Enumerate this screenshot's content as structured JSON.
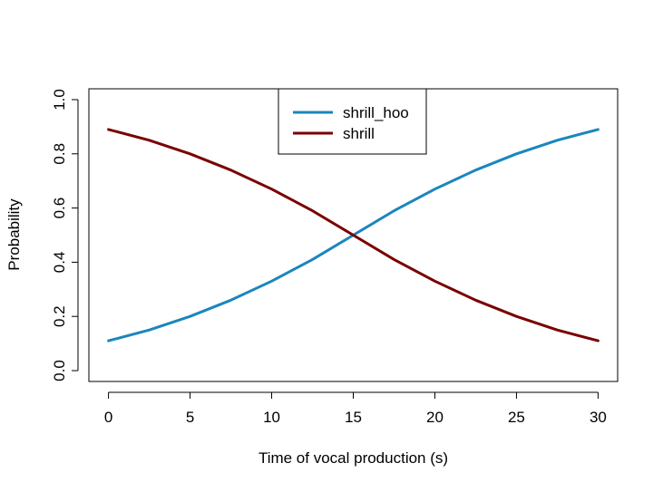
{
  "chart_data": {
    "type": "line",
    "title": "",
    "xlabel": "Time of vocal production (s)",
    "ylabel": "Probability",
    "xlim": [
      -1.2,
      31.2
    ],
    "ylim": [
      -0.04,
      1.04
    ],
    "x_ticks": [
      "0",
      "5",
      "10",
      "15",
      "20",
      "25",
      "30"
    ],
    "y_ticks": [
      "0.0",
      "0.2",
      "0.4",
      "0.6",
      "0.8",
      "1.0"
    ],
    "grid": false,
    "legend_position": "top-center",
    "series": [
      {
        "name": "shrill_hoo",
        "color": "#1a86bd",
        "x": [
          0,
          2.5,
          5,
          7.5,
          10,
          12.5,
          15,
          17.5,
          20,
          22.5,
          25,
          27.5,
          30
        ],
        "y": [
          0.11,
          0.15,
          0.2,
          0.26,
          0.33,
          0.41,
          0.5,
          0.59,
          0.67,
          0.74,
          0.8,
          0.85,
          0.89
        ]
      },
      {
        "name": "shrill",
        "color": "#7a0000",
        "x": [
          0,
          2.5,
          5,
          7.5,
          10,
          12.5,
          15,
          17.5,
          20,
          22.5,
          25,
          27.5,
          30
        ],
        "y": [
          0.89,
          0.85,
          0.8,
          0.74,
          0.67,
          0.59,
          0.5,
          0.41,
          0.33,
          0.26,
          0.2,
          0.15,
          0.11
        ]
      }
    ]
  }
}
